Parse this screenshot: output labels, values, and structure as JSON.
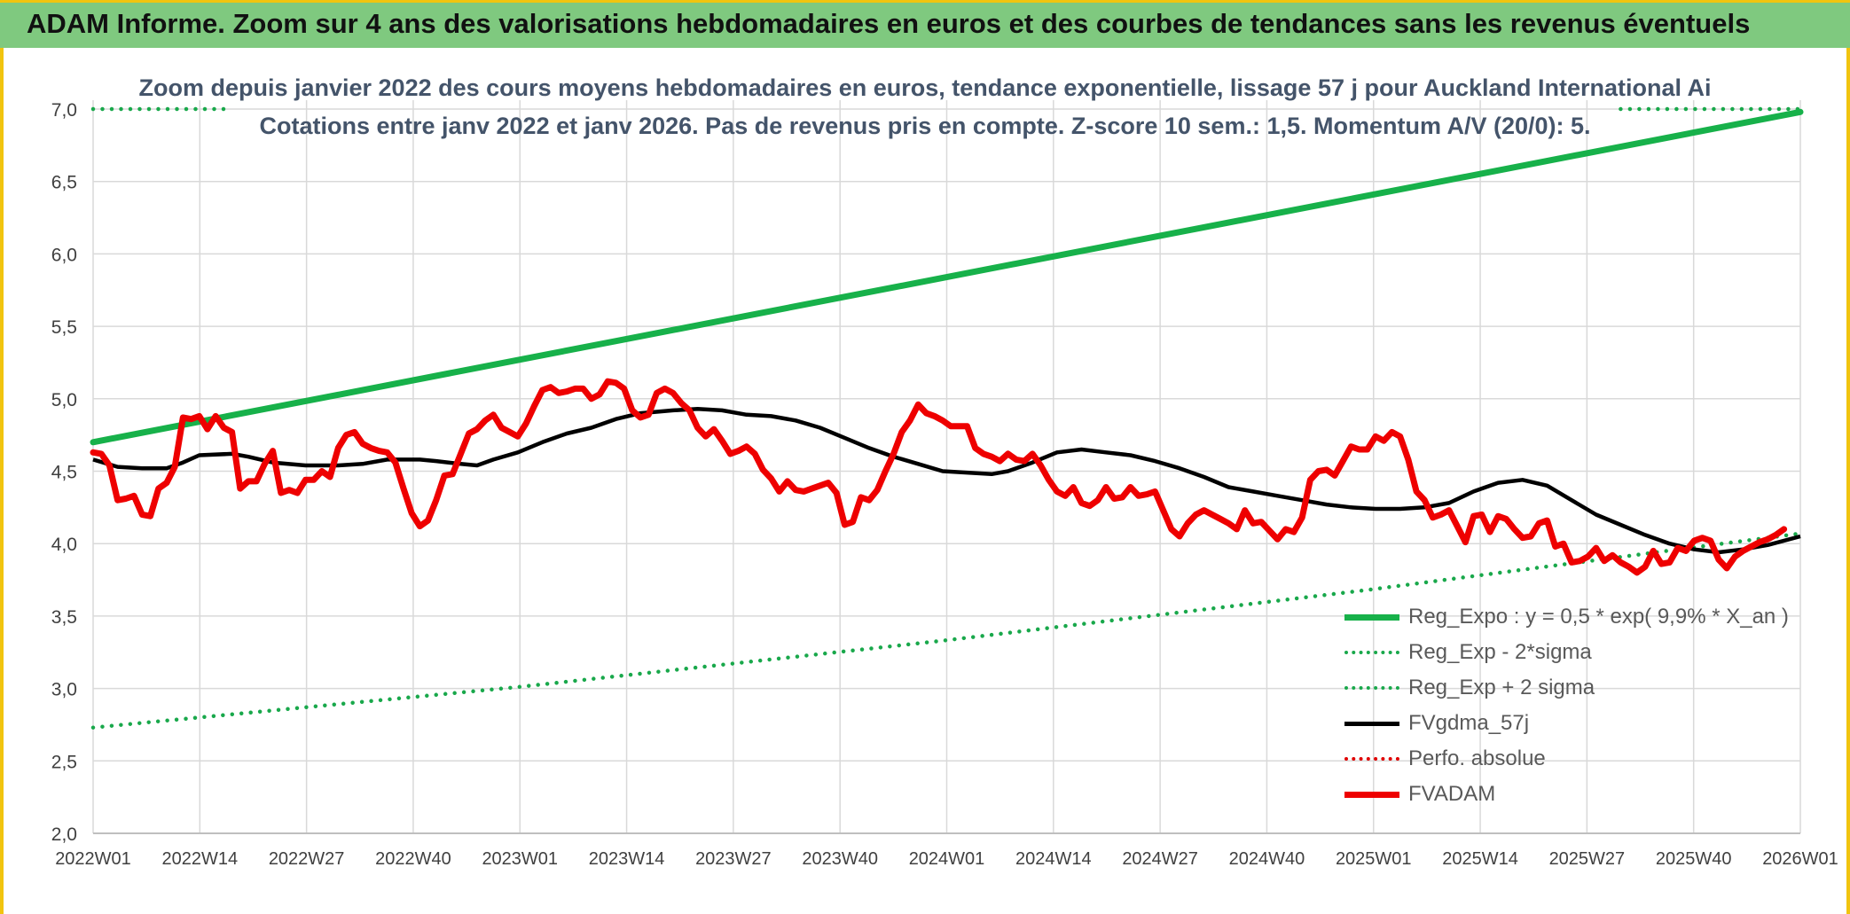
{
  "header": {
    "title": "ADAM Informe. Zoom sur 4 ans des valorisations hebdomadaires en euros et des courbes de tendances sans les revenus éventuels"
  },
  "colors": {
    "reg_expo": "#17b14a",
    "sigma": "#19a84b",
    "gdma": "#000000",
    "perfo": "#e00000",
    "fvadam": "#ee0000",
    "grid": "#d9d9d9",
    "axis_text": "#404040",
    "title_text": "#44546a"
  },
  "chart_data": {
    "type": "line",
    "title": "Zoom depuis janvier 2022 des cours moyens hebdomadaires en euros, tendance exponentielle, lissage 57 j pour Auckland International Ai",
    "subtitle": "Cotations entre janv 2022 et janv 2026. Pas de revenus pris en compte. Z-score 10 sem.: 1,5. Momentum A/V (20/0): 5.",
    "xlabel": "",
    "ylabel": "",
    "x_ticks": [
      "2022W01",
      "2022W14",
      "2022W27",
      "2022W40",
      "2023W01",
      "2023W14",
      "2023W27",
      "2023W40",
      "2024W01",
      "2024W14",
      "2024W27",
      "2024W40",
      "2025W01",
      "2025W14",
      "2025W27",
      "2025W40",
      "2026W01"
    ],
    "y_ticks": [
      "2,0",
      "2,5",
      "3,0",
      "3,5",
      "4,0",
      "4,5",
      "5,0",
      "5,5",
      "6,0",
      "6,5",
      "7,0"
    ],
    "ylim": [
      2.0,
      7.0
    ],
    "xlim_weeks": [
      0,
      209
    ],
    "grid": true,
    "legend_position": "bottom-right",
    "series": [
      {
        "name": "Reg_Expo : y = 0,5 * exp( 9,9% *  X_an )",
        "style": "solid-thick",
        "color_key": "reg_expo",
        "points": [
          [
            0,
            4.7
          ],
          [
            209,
            6.98
          ]
        ]
      },
      {
        "name": "Reg_Exp - 2*sigma",
        "style": "dotted",
        "color_key": "sigma",
        "points": [
          [
            0,
            2.73
          ],
          [
            52,
            3.01
          ],
          [
            104,
            3.33
          ],
          [
            156,
            3.68
          ],
          [
            209,
            4.07
          ]
        ]
      },
      {
        "name": "Reg_Exp + 2 sigma",
        "style": "dotted",
        "color_key": "sigma",
        "segments": [
          [
            [
              0,
              7.0
            ],
            [
              17,
              7.0
            ]
          ],
          [
            [
              187,
              7.0
            ],
            [
              209,
              7.0
            ]
          ]
        ]
      },
      {
        "name": "FVgdma_57j",
        "style": "solid",
        "color_key": "gdma",
        "points": [
          [
            0,
            4.58
          ],
          [
            3,
            4.53
          ],
          [
            6,
            4.52
          ],
          [
            9,
            4.52
          ],
          [
            11,
            4.56
          ],
          [
            13,
            4.61
          ],
          [
            17,
            4.62
          ],
          [
            19,
            4.6
          ],
          [
            22,
            4.56
          ],
          [
            26,
            4.54
          ],
          [
            30,
            4.54
          ],
          [
            33,
            4.55
          ],
          [
            36,
            4.58
          ],
          [
            40,
            4.58
          ],
          [
            42,
            4.57
          ],
          [
            45,
            4.55
          ],
          [
            47,
            4.54
          ],
          [
            49,
            4.58
          ],
          [
            52,
            4.63
          ],
          [
            55,
            4.7
          ],
          [
            58,
            4.76
          ],
          [
            61,
            4.8
          ],
          [
            64,
            4.86
          ],
          [
            67,
            4.9
          ],
          [
            71,
            4.92
          ],
          [
            74,
            4.93
          ],
          [
            77,
            4.92
          ],
          [
            80,
            4.89
          ],
          [
            83,
            4.88
          ],
          [
            86,
            4.85
          ],
          [
            89,
            4.8
          ],
          [
            92,
            4.73
          ],
          [
            95,
            4.66
          ],
          [
            98,
            4.6
          ],
          [
            101,
            4.55
          ],
          [
            104,
            4.5
          ],
          [
            107,
            4.49
          ],
          [
            110,
            4.48
          ],
          [
            112,
            4.5
          ],
          [
            115,
            4.56
          ],
          [
            118,
            4.63
          ],
          [
            121,
            4.65
          ],
          [
            124,
            4.63
          ],
          [
            127,
            4.61
          ],
          [
            130,
            4.57
          ],
          [
            133,
            4.52
          ],
          [
            136,
            4.46
          ],
          [
            139,
            4.39
          ],
          [
            142,
            4.36
          ],
          [
            145,
            4.33
          ],
          [
            148,
            4.3
          ],
          [
            151,
            4.27
          ],
          [
            154,
            4.25
          ],
          [
            157,
            4.24
          ],
          [
            160,
            4.24
          ],
          [
            163,
            4.25
          ],
          [
            166,
            4.28
          ],
          [
            169,
            4.36
          ],
          [
            172,
            4.42
          ],
          [
            175,
            4.44
          ],
          [
            178,
            4.4
          ],
          [
            181,
            4.3
          ],
          [
            184,
            4.2
          ],
          [
            187,
            4.13
          ],
          [
            190,
            4.06
          ],
          [
            193,
            4.0
          ],
          [
            196,
            3.96
          ],
          [
            199,
            3.94
          ],
          [
            202,
            3.96
          ],
          [
            205,
            3.99
          ],
          [
            209,
            4.05
          ]
        ]
      },
      {
        "name": "Perfo. absolue",
        "style": "dotted",
        "color_key": "perfo",
        "points": []
      },
      {
        "name": "FVADAM",
        "style": "solid-thick",
        "color_key": "fvadam",
        "points": [
          [
            0,
            4.63
          ],
          [
            1,
            4.62
          ],
          [
            2,
            4.54
          ],
          [
            3,
            4.3
          ],
          [
            4,
            4.31
          ],
          [
            5,
            4.33
          ],
          [
            6,
            4.2
          ],
          [
            7,
            4.19
          ],
          [
            8,
            4.38
          ],
          [
            9,
            4.42
          ],
          [
            10,
            4.53
          ],
          [
            11,
            4.87
          ],
          [
            12,
            4.86
          ],
          [
            13,
            4.88
          ],
          [
            14,
            4.79
          ],
          [
            15,
            4.88
          ],
          [
            16,
            4.8
          ],
          [
            17,
            4.77
          ],
          [
            18,
            4.38
          ],
          [
            19,
            4.43
          ],
          [
            20,
            4.43
          ],
          [
            21,
            4.55
          ],
          [
            22,
            4.64
          ],
          [
            23,
            4.35
          ],
          [
            24,
            4.37
          ],
          [
            25,
            4.35
          ],
          [
            26,
            4.44
          ],
          [
            27,
            4.44
          ],
          [
            28,
            4.5
          ],
          [
            29,
            4.46
          ],
          [
            30,
            4.66
          ],
          [
            31,
            4.75
          ],
          [
            32,
            4.77
          ],
          [
            33,
            4.69
          ],
          [
            34,
            4.66
          ],
          [
            35,
            4.64
          ],
          [
            36,
            4.63
          ],
          [
            37,
            4.56
          ],
          [
            38,
            4.38
          ],
          [
            39,
            4.21
          ],
          [
            40,
            4.12
          ],
          [
            41,
            4.16
          ],
          [
            42,
            4.3
          ],
          [
            43,
            4.47
          ],
          [
            44,
            4.48
          ],
          [
            45,
            4.62
          ],
          [
            46,
            4.76
          ],
          [
            47,
            4.79
          ],
          [
            48,
            4.85
          ],
          [
            49,
            4.89
          ],
          [
            50,
            4.8
          ],
          [
            51,
            4.77
          ],
          [
            52,
            4.74
          ],
          [
            53,
            4.83
          ],
          [
            54,
            4.95
          ],
          [
            55,
            5.06
          ],
          [
            56,
            5.08
          ],
          [
            57,
            5.04
          ],
          [
            58,
            5.05
          ],
          [
            59,
            5.07
          ],
          [
            60,
            5.07
          ],
          [
            61,
            5.0
          ],
          [
            62,
            5.03
          ],
          [
            63,
            5.12
          ],
          [
            64,
            5.11
          ],
          [
            65,
            5.07
          ],
          [
            66,
            4.92
          ],
          [
            67,
            4.87
          ],
          [
            68,
            4.89
          ],
          [
            69,
            5.04
          ],
          [
            70,
            5.07
          ],
          [
            71,
            5.04
          ],
          [
            72,
            4.97
          ],
          [
            73,
            4.92
          ],
          [
            74,
            4.8
          ],
          [
            75,
            4.74
          ],
          [
            76,
            4.79
          ],
          [
            77,
            4.71
          ],
          [
            78,
            4.62
          ],
          [
            79,
            4.64
          ],
          [
            80,
            4.67
          ],
          [
            81,
            4.62
          ],
          [
            82,
            4.51
          ],
          [
            83,
            4.45
          ],
          [
            84,
            4.36
          ],
          [
            85,
            4.43
          ],
          [
            86,
            4.37
          ],
          [
            87,
            4.36
          ],
          [
            88,
            4.38
          ],
          [
            89,
            4.4
          ],
          [
            90,
            4.42
          ],
          [
            91,
            4.35
          ],
          [
            92,
            4.13
          ],
          [
            93,
            4.15
          ],
          [
            94,
            4.32
          ],
          [
            95,
            4.3
          ],
          [
            96,
            4.37
          ],
          [
            97,
            4.5
          ],
          [
            98,
            4.62
          ],
          [
            99,
            4.77
          ],
          [
            100,
            4.85
          ],
          [
            101,
            4.96
          ],
          [
            102,
            4.9
          ],
          [
            103,
            4.88
          ],
          [
            104,
            4.85
          ],
          [
            105,
            4.81
          ],
          [
            106,
            4.81
          ],
          [
            107,
            4.81
          ],
          [
            108,
            4.66
          ],
          [
            109,
            4.62
          ],
          [
            110,
            4.6
          ],
          [
            111,
            4.57
          ],
          [
            112,
            4.62
          ],
          [
            113,
            4.58
          ],
          [
            114,
            4.57
          ],
          [
            115,
            4.62
          ],
          [
            116,
            4.54
          ],
          [
            117,
            4.44
          ],
          [
            118,
            4.36
          ],
          [
            119,
            4.33
          ],
          [
            120,
            4.39
          ],
          [
            121,
            4.28
          ],
          [
            122,
            4.26
          ],
          [
            123,
            4.3
          ],
          [
            124,
            4.39
          ],
          [
            125,
            4.31
          ],
          [
            126,
            4.32
          ],
          [
            127,
            4.39
          ],
          [
            128,
            4.33
          ],
          [
            129,
            4.34
          ],
          [
            130,
            4.36
          ],
          [
            131,
            4.23
          ],
          [
            132,
            4.1
          ],
          [
            133,
            4.05
          ],
          [
            134,
            4.14
          ],
          [
            135,
            4.2
          ],
          [
            136,
            4.23
          ],
          [
            137,
            4.2
          ],
          [
            138,
            4.17
          ],
          [
            139,
            4.14
          ],
          [
            140,
            4.1
          ],
          [
            141,
            4.23
          ],
          [
            142,
            4.14
          ],
          [
            143,
            4.15
          ],
          [
            144,
            4.09
          ],
          [
            145,
            4.03
          ],
          [
            146,
            4.1
          ],
          [
            147,
            4.08
          ],
          [
            148,
            4.18
          ],
          [
            149,
            4.44
          ],
          [
            150,
            4.5
          ],
          [
            151,
            4.51
          ],
          [
            152,
            4.47
          ],
          [
            153,
            4.57
          ],
          [
            154,
            4.67
          ],
          [
            155,
            4.65
          ],
          [
            156,
            4.65
          ],
          [
            157,
            4.74
          ],
          [
            158,
            4.71
          ],
          [
            159,
            4.77
          ],
          [
            160,
            4.74
          ],
          [
            161,
            4.58
          ],
          [
            162,
            4.36
          ],
          [
            163,
            4.3
          ],
          [
            164,
            4.18
          ],
          [
            165,
            4.2
          ],
          [
            166,
            4.23
          ],
          [
            167,
            4.12
          ],
          [
            168,
            4.01
          ],
          [
            169,
            4.19
          ],
          [
            170,
            4.2
          ],
          [
            171,
            4.08
          ],
          [
            172,
            4.19
          ],
          [
            173,
            4.17
          ],
          [
            174,
            4.1
          ],
          [
            175,
            4.04
          ],
          [
            176,
            4.05
          ],
          [
            177,
            4.14
          ],
          [
            178,
            4.16
          ],
          [
            179,
            3.98
          ],
          [
            180,
            4.0
          ],
          [
            181,
            3.87
          ],
          [
            182,
            3.88
          ],
          [
            183,
            3.91
          ],
          [
            184,
            3.97
          ],
          [
            185,
            3.88
          ],
          [
            186,
            3.92
          ],
          [
            187,
            3.87
          ],
          [
            188,
            3.84
          ],
          [
            189,
            3.8
          ],
          [
            190,
            3.84
          ],
          [
            191,
            3.95
          ],
          [
            192,
            3.86
          ],
          [
            193,
            3.87
          ],
          [
            194,
            3.97
          ],
          [
            195,
            3.95
          ],
          [
            196,
            4.02
          ],
          [
            197,
            4.04
          ],
          [
            198,
            4.02
          ],
          [
            199,
            3.89
          ],
          [
            200,
            3.83
          ],
          [
            201,
            3.91
          ],
          [
            202,
            3.95
          ],
          [
            203,
            3.98
          ],
          [
            204,
            4.01
          ],
          [
            205,
            4.03
          ],
          [
            206,
            4.06
          ],
          [
            207,
            4.1
          ]
        ]
      }
    ]
  }
}
